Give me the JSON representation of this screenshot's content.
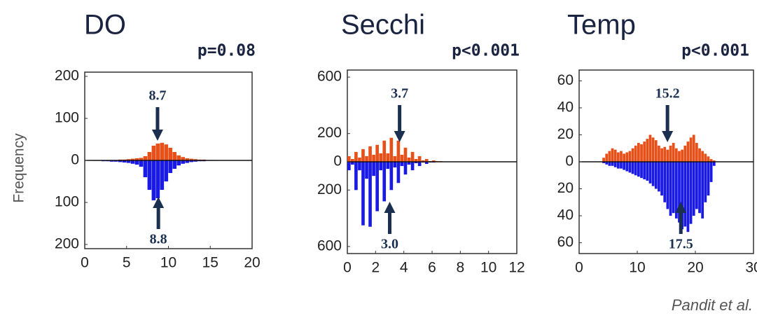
{
  "credit": "Pandit et al.",
  "chart_data": [
    {
      "type": "histogram",
      "title": "DO",
      "subtitle": "p=0.08",
      "ylabel": "Frequency",
      "bins": [
        0,
        0.5,
        1,
        1.5,
        2,
        2.5,
        3,
        3.5,
        4,
        4.5,
        5,
        5.5,
        6,
        6.5,
        7,
        7.5,
        8,
        8.5,
        9,
        9.5,
        10,
        10.5,
        11,
        11.5,
        12,
        12.5,
        13,
        13.5,
        14,
        14.5,
        15,
        15.5,
        16,
        16.5,
        17,
        17.5,
        18,
        18.5,
        19,
        19.5,
        20
      ],
      "series": [
        {
          "color": "#e8501a",
          "values": [
            0,
            0,
            0,
            0,
            0,
            0,
            1,
            1,
            2,
            2,
            3,
            4,
            5,
            6,
            10,
            20,
            35,
            40,
            42,
            38,
            30,
            20,
            12,
            8,
            5,
            4,
            3,
            2,
            2,
            1,
            1,
            0,
            0,
            0,
            0,
            0,
            0,
            0,
            0,
            0
          ]
        },
        {
          "color": "#1a1ae6",
          "values": [
            0,
            0,
            -1,
            -1,
            -2,
            -2,
            -3,
            -3,
            -4,
            -5,
            -6,
            -8,
            -10,
            -15,
            -40,
            -70,
            -95,
            -90,
            -70,
            -50,
            -30,
            -20,
            -12,
            -8,
            -6,
            -4,
            -3,
            -2,
            -2,
            -1,
            -1,
            -1,
            0,
            0,
            0,
            0,
            0,
            0,
            0,
            0
          ]
        }
      ],
      "annotations": [
        {
          "value": 8.7,
          "label": "8.7",
          "side": "top"
        },
        {
          "value": 8.8,
          "label": "8.8",
          "side": "bottom"
        }
      ],
      "xlim": [
        0,
        20
      ],
      "xticks": [
        0,
        5,
        10,
        15,
        20
      ],
      "ylim": [
        -210,
        210
      ],
      "yticks": [
        200,
        100,
        0,
        {
          "value": -100,
          "label": "100"
        },
        {
          "value": -200,
          "label": "200"
        }
      ]
    },
    {
      "type": "histogram",
      "title": "Secchi",
      "subtitle": "p<0.001",
      "bins": [
        0,
        0.25,
        0.5,
        0.75,
        1,
        1.25,
        1.5,
        1.75,
        2,
        2.25,
        2.5,
        2.75,
        3,
        3.25,
        3.5,
        3.75,
        4,
        4.25,
        4.5,
        4.75,
        5,
        5.25,
        5.5,
        5.75,
        6,
        6.25,
        6.5,
        6.75,
        7
      ],
      "series": [
        {
          "color": "#e8501a",
          "values": [
            40,
            20,
            70,
            30,
            90,
            40,
            110,
            50,
            120,
            60,
            150,
            60,
            170,
            40,
            150,
            50,
            100,
            30,
            70,
            20,
            40,
            10,
            20,
            5,
            10,
            5,
            5,
            0
          ]
        },
        {
          "color": "#1a1ae6",
          "values": [
            -60,
            -20,
            -200,
            -60,
            -450,
            -120,
            -460,
            -100,
            -350,
            -60,
            -280,
            -50,
            -200,
            -40,
            -150,
            -30,
            -90,
            -20,
            -60,
            -10,
            -30,
            -5,
            -15,
            -5,
            -5,
            -2,
            0,
            0
          ]
        }
      ],
      "annotations": [
        {
          "value": 3.7,
          "label": "3.7",
          "side": "top"
        },
        {
          "value": 3.0,
          "label": "3.0",
          "side": "bottom"
        }
      ],
      "xlim": [
        0,
        12
      ],
      "xticks": [
        0,
        2,
        4,
        6,
        8,
        10,
        12
      ],
      "ylim": [
        -650,
        650
      ],
      "yticks": [
        600,
        200,
        0,
        {
          "value": -200,
          "label": "200"
        },
        {
          "value": -600,
          "label": "600"
        }
      ]
    },
    {
      "type": "histogram",
      "title": "Temp",
      "subtitle": "p<0.001",
      "bins": [
        0,
        0.5,
        1,
        1.5,
        2,
        2.5,
        3,
        3.5,
        4,
        4.5,
        5,
        5.5,
        6,
        6.5,
        7,
        7.5,
        8,
        8.5,
        9,
        9.5,
        10,
        10.5,
        11,
        11.5,
        12,
        12.5,
        13,
        13.5,
        14,
        14.5,
        15,
        15.5,
        16,
        16.5,
        17,
        17.5,
        18,
        18.5,
        19,
        19.5,
        20,
        20.5,
        21,
        21.5,
        22,
        22.5,
        23,
        23.5,
        24,
        24.5,
        25,
        25.5,
        26,
        26.5,
        27,
        27.5,
        28,
        28.5,
        29,
        29.5,
        30
      ],
      "series": [
        {
          "color": "#e8501a",
          "values": [
            0,
            0,
            0,
            0,
            0,
            0,
            0,
            0,
            3,
            6,
            8,
            10,
            9,
            7,
            8,
            6,
            7,
            8,
            10,
            12,
            14,
            13,
            15,
            17,
            20,
            18,
            16,
            12,
            10,
            11,
            9,
            12,
            14,
            10,
            8,
            9,
            12,
            15,
            18,
            20,
            14,
            10,
            8,
            6,
            4,
            2,
            1,
            0,
            0,
            0,
            0,
            0,
            0,
            0,
            0,
            0,
            0,
            0,
            0,
            0
          ]
        },
        {
          "color": "#1a1ae6",
          "values": [
            0,
            0,
            0,
            0,
            0,
            0,
            0,
            0,
            -1,
            -2,
            -3,
            -3,
            -4,
            -5,
            -5,
            -6,
            -7,
            -8,
            -9,
            -10,
            -11,
            -12,
            -13,
            -14,
            -16,
            -18,
            -20,
            -22,
            -25,
            -30,
            -35,
            -40,
            -38,
            -42,
            -45,
            -50,
            -48,
            -52,
            -46,
            -40,
            -35,
            -38,
            -42,
            -30,
            -25,
            -15,
            -3,
            0,
            0,
            0,
            0,
            0,
            0,
            0,
            0,
            0,
            0,
            0,
            0,
            0
          ]
        }
      ],
      "annotations": [
        {
          "value": 15.2,
          "label": "15.2",
          "side": "top"
        },
        {
          "value": 17.5,
          "label": "17.5",
          "side": "bottom"
        }
      ],
      "xlim": [
        0,
        30
      ],
      "xticks": [
        0,
        10,
        20,
        30
      ],
      "ylim": [
        -68,
        68
      ],
      "yticks": [
        60,
        40,
        20,
        0,
        {
          "value": -20,
          "label": "20"
        },
        {
          "value": -40,
          "label": "40"
        },
        {
          "value": -60,
          "label": "60"
        }
      ]
    }
  ]
}
